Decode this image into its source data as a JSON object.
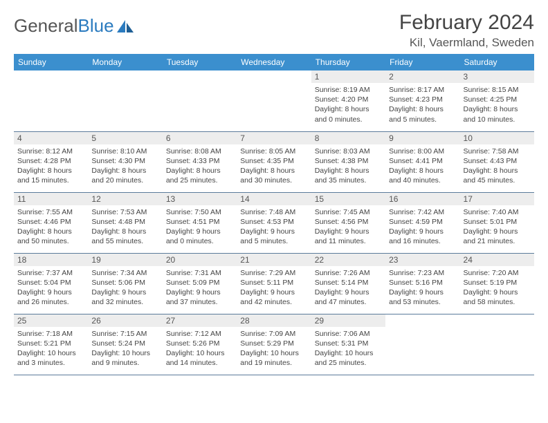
{
  "brand": {
    "part1": "General",
    "part2": "Blue"
  },
  "title": "February 2024",
  "location": "Kil, Vaermland, Sweden",
  "colors": {
    "header_bg": "#3b8fce",
    "header_text": "#ffffff",
    "daynum_bg": "#ededed",
    "row_border": "#5a7a9a",
    "text": "#444444",
    "brand_gray": "#555555",
    "brand_blue": "#2b7bbf"
  },
  "day_headers": [
    "Sunday",
    "Monday",
    "Tuesday",
    "Wednesday",
    "Thursday",
    "Friday",
    "Saturday"
  ],
  "weeks": [
    [
      null,
      null,
      null,
      null,
      {
        "n": "1",
        "sr": "8:19 AM",
        "ss": "4:20 PM",
        "dl": "8 hours and 0 minutes."
      },
      {
        "n": "2",
        "sr": "8:17 AM",
        "ss": "4:23 PM",
        "dl": "8 hours and 5 minutes."
      },
      {
        "n": "3",
        "sr": "8:15 AM",
        "ss": "4:25 PM",
        "dl": "8 hours and 10 minutes."
      }
    ],
    [
      {
        "n": "4",
        "sr": "8:12 AM",
        "ss": "4:28 PM",
        "dl": "8 hours and 15 minutes."
      },
      {
        "n": "5",
        "sr": "8:10 AM",
        "ss": "4:30 PM",
        "dl": "8 hours and 20 minutes."
      },
      {
        "n": "6",
        "sr": "8:08 AM",
        "ss": "4:33 PM",
        "dl": "8 hours and 25 minutes."
      },
      {
        "n": "7",
        "sr": "8:05 AM",
        "ss": "4:35 PM",
        "dl": "8 hours and 30 minutes."
      },
      {
        "n": "8",
        "sr": "8:03 AM",
        "ss": "4:38 PM",
        "dl": "8 hours and 35 minutes."
      },
      {
        "n": "9",
        "sr": "8:00 AM",
        "ss": "4:41 PM",
        "dl": "8 hours and 40 minutes."
      },
      {
        "n": "10",
        "sr": "7:58 AM",
        "ss": "4:43 PM",
        "dl": "8 hours and 45 minutes."
      }
    ],
    [
      {
        "n": "11",
        "sr": "7:55 AM",
        "ss": "4:46 PM",
        "dl": "8 hours and 50 minutes."
      },
      {
        "n": "12",
        "sr": "7:53 AM",
        "ss": "4:48 PM",
        "dl": "8 hours and 55 minutes."
      },
      {
        "n": "13",
        "sr": "7:50 AM",
        "ss": "4:51 PM",
        "dl": "9 hours and 0 minutes."
      },
      {
        "n": "14",
        "sr": "7:48 AM",
        "ss": "4:53 PM",
        "dl": "9 hours and 5 minutes."
      },
      {
        "n": "15",
        "sr": "7:45 AM",
        "ss": "4:56 PM",
        "dl": "9 hours and 11 minutes."
      },
      {
        "n": "16",
        "sr": "7:42 AM",
        "ss": "4:59 PM",
        "dl": "9 hours and 16 minutes."
      },
      {
        "n": "17",
        "sr": "7:40 AM",
        "ss": "5:01 PM",
        "dl": "9 hours and 21 minutes."
      }
    ],
    [
      {
        "n": "18",
        "sr": "7:37 AM",
        "ss": "5:04 PM",
        "dl": "9 hours and 26 minutes."
      },
      {
        "n": "19",
        "sr": "7:34 AM",
        "ss": "5:06 PM",
        "dl": "9 hours and 32 minutes."
      },
      {
        "n": "20",
        "sr": "7:31 AM",
        "ss": "5:09 PM",
        "dl": "9 hours and 37 minutes."
      },
      {
        "n": "21",
        "sr": "7:29 AM",
        "ss": "5:11 PM",
        "dl": "9 hours and 42 minutes."
      },
      {
        "n": "22",
        "sr": "7:26 AM",
        "ss": "5:14 PM",
        "dl": "9 hours and 47 minutes."
      },
      {
        "n": "23",
        "sr": "7:23 AM",
        "ss": "5:16 PM",
        "dl": "9 hours and 53 minutes."
      },
      {
        "n": "24",
        "sr": "7:20 AM",
        "ss": "5:19 PM",
        "dl": "9 hours and 58 minutes."
      }
    ],
    [
      {
        "n": "25",
        "sr": "7:18 AM",
        "ss": "5:21 PM",
        "dl": "10 hours and 3 minutes."
      },
      {
        "n": "26",
        "sr": "7:15 AM",
        "ss": "5:24 PM",
        "dl": "10 hours and 9 minutes."
      },
      {
        "n": "27",
        "sr": "7:12 AM",
        "ss": "5:26 PM",
        "dl": "10 hours and 14 minutes."
      },
      {
        "n": "28",
        "sr": "7:09 AM",
        "ss": "5:29 PM",
        "dl": "10 hours and 19 minutes."
      },
      {
        "n": "29",
        "sr": "7:06 AM",
        "ss": "5:31 PM",
        "dl": "10 hours and 25 minutes."
      },
      null,
      null
    ]
  ],
  "labels": {
    "sunrise": "Sunrise: ",
    "sunset": "Sunset: ",
    "daylight": "Daylight: "
  }
}
